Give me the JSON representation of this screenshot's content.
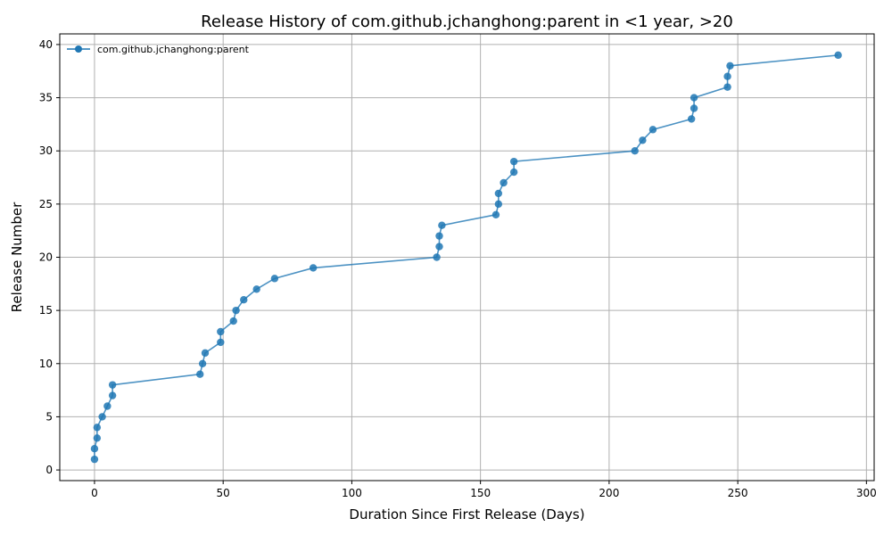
{
  "chart_data": {
    "type": "line",
    "title": "Release History of com.github.jchanghong:parent in <1 year, >20",
    "xlabel": "Duration Since First Release (Days)",
    "ylabel": "Release Number",
    "xlim": [
      -13.5,
      303
    ],
    "ylim": [
      -1,
      41
    ],
    "xticks": [
      0,
      50,
      100,
      150,
      200,
      250,
      300
    ],
    "yticks": [
      0,
      5,
      10,
      15,
      20,
      25,
      30,
      35,
      40
    ],
    "grid": true,
    "legend_position": "top-left",
    "colors": {
      "series": "#1f77b4",
      "grid": "#b0b0b0",
      "axes": "#000000"
    },
    "series": [
      {
        "name": "com.github.jchanghong:parent",
        "marker": "circle",
        "x": [
          0,
          0,
          1,
          1,
          3,
          5,
          7,
          7,
          41,
          42,
          43,
          49,
          49,
          54,
          55,
          58,
          63,
          70,
          85,
          133,
          134,
          134,
          135,
          156,
          157,
          157,
          159,
          163,
          163,
          210,
          213,
          217,
          232,
          233,
          233,
          246,
          246,
          247,
          289
        ],
        "y": [
          1,
          2,
          3,
          4,
          5,
          6,
          7,
          8,
          9,
          10,
          11,
          12,
          13,
          14,
          15,
          16,
          17,
          18,
          19,
          20,
          21,
          22,
          23,
          24,
          25,
          26,
          27,
          28,
          29,
          30,
          31,
          32,
          33,
          34,
          35,
          36,
          37,
          38,
          39
        ]
      }
    ]
  }
}
